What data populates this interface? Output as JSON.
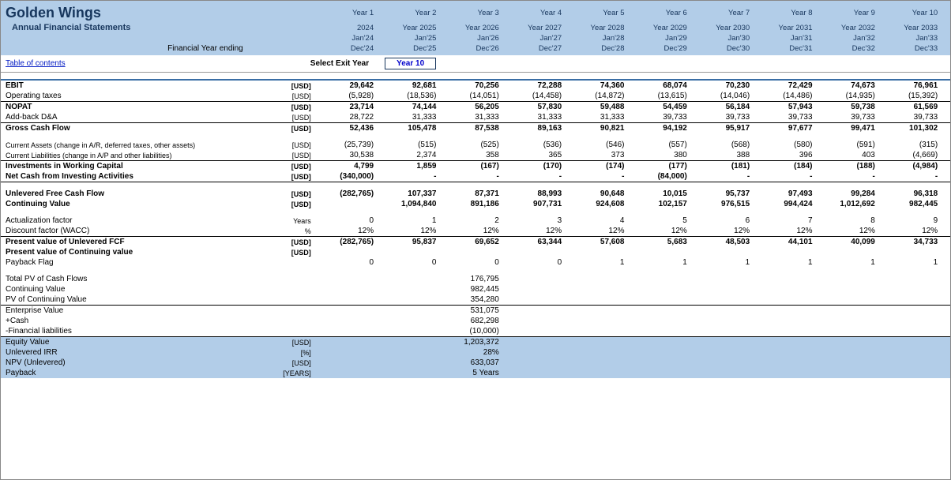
{
  "header": {
    "company": "Golden Wings",
    "subtitle": "Annual Financial Statements",
    "fyLabel": "Financial Year ending",
    "yearLabels": [
      "Year 1",
      "Year 2",
      "Year 3",
      "Year 4",
      "Year 5",
      "Year 6",
      "Year 7",
      "Year 8",
      "Year 9",
      "Year 10"
    ],
    "calYears": [
      "2024",
      "Year 2025",
      "Year 2026",
      "Year 2027",
      "Year 2028",
      "Year 2029",
      "Year 2030",
      "Year 2031",
      "Year 2032",
      "Year 2033"
    ],
    "starts": [
      "Jan'24",
      "Jan'25",
      "Jan'26",
      "Jan'27",
      "Jan'28",
      "Jan'29",
      "Jan'30",
      "Jan'31",
      "Jan'32",
      "Jan'33"
    ],
    "ends": [
      "Dec'24",
      "Dec'25",
      "Dec'26",
      "Dec'27",
      "Dec'28",
      "Dec'29",
      "Dec'30",
      "Dec'31",
      "Dec'32",
      "Dec'33"
    ]
  },
  "toc": "Table of contents",
  "exit": {
    "label": "Select Exit Year",
    "value": "Year 10"
  },
  "colors": {
    "headerBg": "#b2cde8",
    "headerText": "#17365d",
    "link": "#0019c4",
    "border": "#000"
  },
  "rows": [
    {
      "key": "ebit",
      "label": "EBIT",
      "unit": "[USD]",
      "bold": true,
      "topBlue": true,
      "vals": [
        "29,642",
        "92,681",
        "70,256",
        "72,288",
        "74,360",
        "68,074",
        "70,230",
        "72,429",
        "74,673",
        "76,961"
      ]
    },
    {
      "key": "optax",
      "label": "Operating taxes",
      "unit": "[USD]",
      "vals": [
        "(5,928)",
        "(18,536)",
        "(14,051)",
        "(14,458)",
        "(14,872)",
        "(13,615)",
        "(14,046)",
        "(14,486)",
        "(14,935)",
        "(15,392)"
      ]
    },
    {
      "key": "nopat",
      "label": "NOPAT",
      "unit": "[USD]",
      "bold": true,
      "top": true,
      "vals": [
        "23,714",
        "74,144",
        "56,205",
        "57,830",
        "59,488",
        "54,459",
        "56,184",
        "57,943",
        "59,738",
        "61,569"
      ]
    },
    {
      "key": "da",
      "label": "Add-back D&A",
      "unit": "[USD]",
      "vals": [
        "28,722",
        "31,333",
        "31,333",
        "31,333",
        "31,333",
        "39,733",
        "39,733",
        "39,733",
        "39,733",
        "39,733"
      ]
    },
    {
      "key": "gcf",
      "label": "Gross Cash Flow",
      "unit": "[USD]",
      "bold": true,
      "top": true,
      "vals": [
        "52,436",
        "105,478",
        "87,538",
        "89,163",
        "90,821",
        "94,192",
        "95,917",
        "97,677",
        "99,471",
        "101,302"
      ]
    },
    {
      "key": "gap1",
      "gap": true
    },
    {
      "key": "ca",
      "label": "Current Assets (change in A/R, deferred taxes, other assets)",
      "unit": "[USD]",
      "small": true,
      "vals": [
        "(25,739)",
        "(515)",
        "(525)",
        "(536)",
        "(546)",
        "(557)",
        "(568)",
        "(580)",
        "(591)",
        "(315)"
      ]
    },
    {
      "key": "cl",
      "label": "Current Liabilities (change in A/P and other liabilities)",
      "unit": "[USD]",
      "small": true,
      "vals": [
        "30,538",
        "2,374",
        "358",
        "365",
        "373",
        "380",
        "388",
        "396",
        "403",
        "(4,669)"
      ]
    },
    {
      "key": "iwc",
      "label": "Investments in Working Capital",
      "unit": "[USD]",
      "bold": true,
      "top": true,
      "vals": [
        "4,799",
        "1,859",
        "(167)",
        "(170)",
        "(174)",
        "(177)",
        "(181)",
        "(184)",
        "(188)",
        "(4,984)"
      ]
    },
    {
      "key": "ncia",
      "label": "Net Cash from Investing Activities",
      "unit": "[USD]",
      "bold": true,
      "vals": [
        "(340,000)",
        "-",
        "-",
        "-",
        "-",
        "(84,000)",
        "-",
        "-",
        "-",
        "-"
      ]
    },
    {
      "key": "gap2",
      "gap": true,
      "top": true
    },
    {
      "key": "ufcf",
      "label": "Unlevered Free Cash Flow",
      "unit": "[USD]",
      "bold": true,
      "vals": [
        "(282,765)",
        "107,337",
        "87,371",
        "88,993",
        "90,648",
        "10,015",
        "95,737",
        "97,493",
        "99,284",
        "96,318"
      ]
    },
    {
      "key": "cv",
      "label": "Continuing Value",
      "unit": "[USD]",
      "bold": true,
      "vals": [
        "",
        "1,094,840",
        "891,186",
        "907,731",
        "924,608",
        "102,157",
        "976,515",
        "994,424",
        "1,012,692",
        "982,445"
      ]
    },
    {
      "key": "gap3",
      "gap": true
    },
    {
      "key": "act",
      "label": "Actualization factor",
      "unit": "Years",
      "vals": [
        "0",
        "1",
        "2",
        "3",
        "4",
        "5",
        "6",
        "7",
        "8",
        "9"
      ]
    },
    {
      "key": "disc",
      "label": "Discount factor (WACC)",
      "unit": "%",
      "vals": [
        "12%",
        "12%",
        "12%",
        "12%",
        "12%",
        "12%",
        "12%",
        "12%",
        "12%",
        "12%"
      ]
    },
    {
      "key": "pvufcf",
      "label": "Present value of Unlevered FCF",
      "unit": "[USD]",
      "bold": true,
      "top": true,
      "vals": [
        "(282,765)",
        "95,837",
        "69,652",
        "63,344",
        "57,608",
        "5,683",
        "48,503",
        "44,101",
        "40,099",
        "34,733"
      ]
    },
    {
      "key": "pvcv",
      "label": "Present value of Continuing  value",
      "unit": "[USD]",
      "bold": true,
      "vals": [
        "",
        "",
        "",
        "",
        "",
        "",
        "",
        "",
        "",
        ""
      ]
    },
    {
      "key": "payflag",
      "label": "Payback Flag",
      "unit": "",
      "vals": [
        "0",
        "0",
        "0",
        "0",
        "1",
        "1",
        "1",
        "1",
        "1",
        "1"
      ]
    },
    {
      "key": "gap4",
      "gap": true
    },
    {
      "key": "tpv",
      "label": "Total PV of Cash Flows",
      "single": "176,795"
    },
    {
      "key": "cvv",
      "label": "Continuing Value",
      "single": "982,445"
    },
    {
      "key": "pvcvv",
      "label": "PV of Continuing Value",
      "single": "354,280"
    },
    {
      "key": "ev",
      "label": "Enterprise Value",
      "single": "531,075",
      "top": true
    },
    {
      "key": "cash",
      "label": "+Cash",
      "single": "682,298"
    },
    {
      "key": "finliab",
      "label": "-Financial liabilities",
      "single": "(10,000)"
    },
    {
      "key": "eqv",
      "label": "Equity Value",
      "unit": "[USD]",
      "single": "1,203,372",
      "hl": true,
      "top": true
    },
    {
      "key": "uirr",
      "label": "Unlevered IRR",
      "unit": "[%]",
      "single": "28%",
      "hl": true
    },
    {
      "key": "npv",
      "label": "NPV (Unlevered)",
      "unit": "[USD]",
      "single": "633,037",
      "hl": true
    },
    {
      "key": "payb",
      "label": "Payback",
      "unit": "[YEARS]",
      "single": "5 Years",
      "hl": true
    }
  ]
}
